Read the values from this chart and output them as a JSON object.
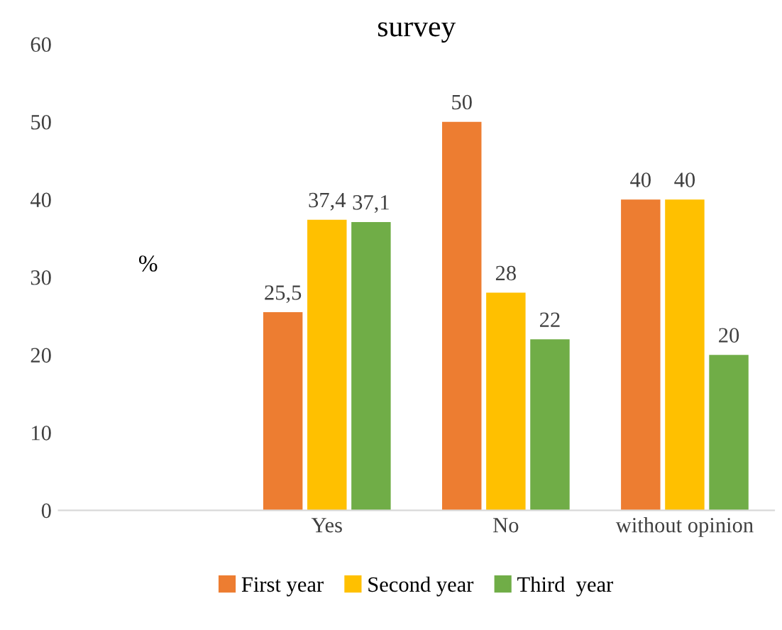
{
  "chart_data": {
    "type": "bar",
    "title": "survey",
    "categories": [
      null,
      "Yes",
      "No",
      "without opinion"
    ],
    "series": [
      {
        "name": "First year",
        "color": "#ed7d31",
        "values": [
          null,
          25.5,
          50,
          40
        ],
        "value_labels": [
          null,
          "25,5",
          "50",
          "40"
        ]
      },
      {
        "name": "Second year",
        "color": "#ffc000",
        "values": [
          null,
          37.4,
          28,
          40
        ],
        "value_labels": [
          null,
          "37,4",
          "28",
          "40"
        ]
      },
      {
        "name": "Third  year",
        "color": "#70ad47",
        "values": [
          null,
          37.1,
          22,
          20
        ],
        "value_labels": [
          null,
          "37,1",
          "22",
          "20"
        ]
      }
    ],
    "annotations": [
      "%"
    ],
    "ylim": [
      0,
      60
    ],
    "yticks": [
      0,
      10,
      20,
      30,
      40,
      50,
      60
    ],
    "grid": false,
    "legend": "bottom"
  }
}
